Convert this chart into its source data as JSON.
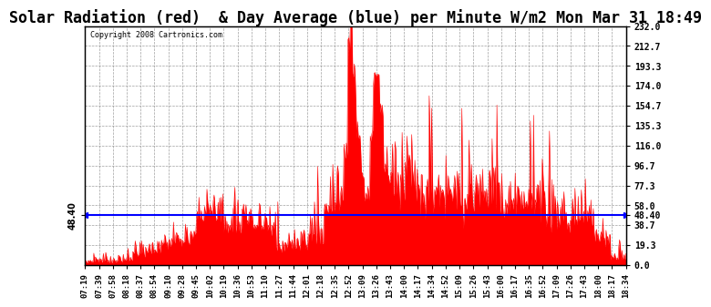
{
  "title": "Solar Radiation (red)  & Day Average (blue) per Minute W/m2 Mon Mar 31 18:49",
  "copyright": "Copyright 2008 Cartronics.com",
  "y_ticks": [
    0.0,
    19.3,
    38.7,
    58.0,
    77.3,
    96.7,
    116.0,
    135.3,
    154.7,
    174.0,
    193.3,
    212.7,
    232.0
  ],
  "ylim": [
    0.0,
    232.0
  ],
  "day_average": 48.4,
  "bar_color": "#FF0000",
  "line_color": "#0000FF",
  "background_color": "#FFFFFF",
  "grid_color": "#888888",
  "title_fontsize": 12,
  "x_labels": [
    "07:19",
    "07:39",
    "07:58",
    "08:18",
    "08:37",
    "08:54",
    "09:10",
    "09:28",
    "09:45",
    "10:02",
    "10:19",
    "10:36",
    "10:53",
    "11:10",
    "11:27",
    "11:44",
    "12:01",
    "12:18",
    "12:35",
    "12:52",
    "13:09",
    "13:26",
    "13:43",
    "14:00",
    "14:17",
    "14:34",
    "14:52",
    "15:09",
    "15:26",
    "15:43",
    "16:00",
    "16:17",
    "16:35",
    "16:52",
    "17:09",
    "17:26",
    "17:43",
    "18:00",
    "18:17",
    "18:34"
  ]
}
